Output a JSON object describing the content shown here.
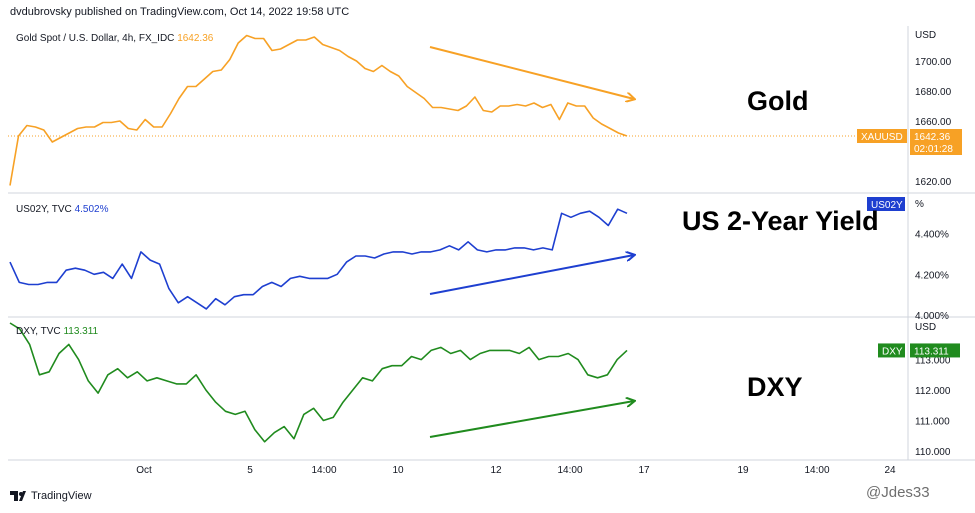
{
  "header": {
    "attribution": "dvdubrovsky published on TradingView.com, Oct 14, 2022 19:58 UTC"
  },
  "footer": {
    "brand": "TradingView",
    "watermark": "@Jdes33"
  },
  "overlays": {
    "gold": "Gold",
    "us2y": "US 2-Year Yield",
    "dxy": "DXY"
  },
  "chart_data": [
    {
      "type": "line",
      "pane": "gold",
      "legend": "Gold Spot / U.S. Dollar, 4h, FX_IDC",
      "last_value_text": "1642.36",
      "axis_unit": "USD",
      "ylim": [
        1614,
        1722
      ],
      "yticks": [
        "1700.00",
        "1680.00",
        "1660.00",
        "1640.00",
        "1620.00"
      ],
      "ytick_values": [
        1700,
        1680,
        1660,
        1640,
        1620
      ],
      "price_tag": {
        "symbol": "XAUUSD",
        "value": "1642.36",
        "countdown": "02:01:28"
      },
      "color": "#f7a125",
      "values": [
        1617,
        1650,
        1657,
        1656,
        1654,
        1646,
        1649,
        1652,
        1655,
        1656,
        1656,
        1659,
        1659,
        1660,
        1655,
        1654,
        1661,
        1656,
        1656,
        1665,
        1675,
        1683,
        1683,
        1688,
        1693,
        1694,
        1701,
        1712,
        1717,
        1715,
        1715,
        1707,
        1708,
        1711,
        1714,
        1714,
        1716,
        1711,
        1709,
        1707,
        1703,
        1700,
        1695,
        1693,
        1697,
        1693,
        1690,
        1683,
        1679,
        1675,
        1669,
        1669,
        1668,
        1667,
        1670,
        1676,
        1667,
        1666,
        1670,
        1670,
        1671,
        1670,
        1672,
        1669,
        1671,
        1661,
        1672,
        1670,
        1670,
        1662,
        1658,
        1655,
        1652,
        1650
      ]
    },
    {
      "type": "line",
      "pane": "us2y",
      "legend": "US02Y, TVC",
      "last_value_text": "4.502%",
      "axis_unit": "%",
      "ylim": [
        4.0,
        4.58
      ],
      "yticks": [
        "4.400%",
        "4.200%",
        "4.000%"
      ],
      "ytick_values": [
        4.4,
        4.2,
        4.0
      ],
      "price_tag": {
        "symbol": "US02Y"
      },
      "color": "#1e3fd0",
      "values": [
        4.26,
        4.16,
        4.15,
        4.15,
        4.16,
        4.16,
        4.22,
        4.23,
        4.22,
        4.2,
        4.21,
        4.18,
        4.25,
        4.18,
        4.31,
        4.27,
        4.25,
        4.13,
        4.06,
        4.09,
        4.06,
        4.03,
        4.08,
        4.05,
        4.09,
        4.1,
        4.1,
        4.14,
        4.16,
        4.14,
        4.18,
        4.19,
        4.18,
        4.18,
        4.18,
        4.2,
        4.26,
        4.29,
        4.29,
        4.28,
        4.3,
        4.31,
        4.31,
        4.3,
        4.31,
        4.31,
        4.32,
        4.34,
        4.32,
        4.36,
        4.32,
        4.31,
        4.32,
        4.32,
        4.33,
        4.33,
        4.32,
        4.33,
        4.32,
        4.5,
        4.48,
        4.5,
        4.51,
        4.48,
        4.44,
        4.52,
        4.5
      ]
    },
    {
      "type": "line",
      "pane": "dxy",
      "legend": "DXY, TVC",
      "last_value_text": "113.311",
      "axis_unit": "USD",
      "ylim": [
        109.8,
        114.3
      ],
      "yticks": [
        "114.000",
        "113.000",
        "112.000",
        "111.000",
        "110.000"
      ],
      "ytick_values": [
        114,
        113,
        112,
        111,
        110
      ],
      "price_tag": {
        "symbol": "DXY",
        "value": "113.311"
      },
      "color": "#208b1e",
      "values": [
        114.2,
        114.0,
        113.5,
        112.5,
        112.6,
        113.2,
        113.5,
        113.0,
        112.3,
        111.9,
        112.5,
        112.7,
        112.4,
        112.6,
        112.3,
        112.4,
        112.3,
        112.2,
        112.2,
        112.5,
        112.0,
        111.6,
        111.3,
        111.2,
        111.3,
        110.7,
        110.3,
        110.6,
        110.8,
        110.4,
        111.2,
        111.4,
        111.0,
        111.1,
        111.6,
        112.0,
        112.4,
        112.3,
        112.7,
        112.8,
        112.8,
        113.1,
        113.0,
        113.3,
        113.4,
        113.2,
        113.3,
        113.0,
        113.2,
        113.3,
        113.3,
        113.3,
        113.2,
        113.4,
        113.0,
        113.1,
        113.1,
        113.2,
        113.0,
        112.5,
        112.4,
        112.5,
        113.0,
        113.3
      ]
    },
    {
      "type": "x-axis",
      "tick_labels": [
        "Oct",
        "5",
        "14:00",
        "10",
        "12",
        "14:00",
        "17",
        "19",
        "14:00",
        "24"
      ]
    }
  ]
}
